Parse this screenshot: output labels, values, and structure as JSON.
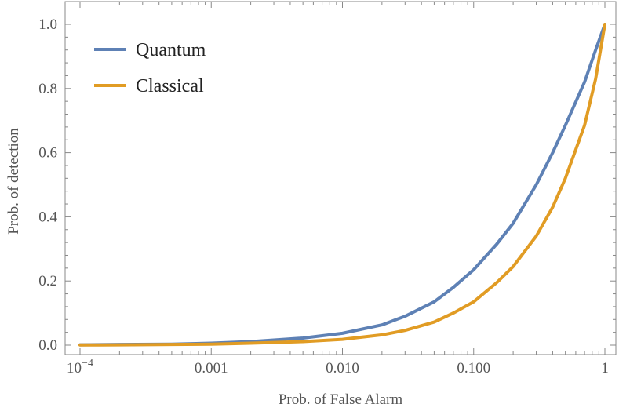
{
  "chart_data": {
    "type": "line",
    "title": "",
    "xlabel": "Prob. of False Alarm",
    "ylabel": "Prob. of detection",
    "xscale": "log",
    "xlim": [
      0.0001,
      1
    ],
    "ylim": [
      0.0,
      1.0
    ],
    "grid": false,
    "legend_position": "top-left",
    "x_ticks": [
      {
        "value": 0.0001,
        "base": "10",
        "exp": "−4"
      },
      {
        "value": 0.001,
        "label": "0.001"
      },
      {
        "value": 0.01,
        "label": "0.010"
      },
      {
        "value": 0.1,
        "label": "0.100"
      },
      {
        "value": 1,
        "label": "1"
      }
    ],
    "y_ticks": [
      {
        "value": 0.0,
        "label": "0.0"
      },
      {
        "value": 0.2,
        "label": "0.2"
      },
      {
        "value": 0.4,
        "label": "0.4"
      },
      {
        "value": 0.6,
        "label": "0.6"
      },
      {
        "value": 0.8,
        "label": "0.8"
      },
      {
        "value": 1.0,
        "label": "1.0"
      }
    ],
    "x": [
      0.0001,
      0.0002,
      0.0005,
      0.001,
      0.002,
      0.005,
      0.01,
      0.02,
      0.03,
      0.05,
      0.07,
      0.1,
      0.15,
      0.2,
      0.3,
      0.4,
      0.5,
      0.7,
      0.85,
      1.0
    ],
    "series": [
      {
        "name": "Quantum",
        "color": "#5e81b5",
        "values": [
          0.001,
          0.002,
          0.003,
          0.006,
          0.011,
          0.022,
          0.037,
          0.063,
          0.09,
          0.135,
          0.18,
          0.235,
          0.315,
          0.38,
          0.5,
          0.6,
          0.685,
          0.82,
          0.92,
          1.0
        ]
      },
      {
        "name": "Classical",
        "color": "#e19c24",
        "values": [
          0.0005,
          0.001,
          0.002,
          0.003,
          0.006,
          0.011,
          0.018,
          0.032,
          0.046,
          0.072,
          0.1,
          0.135,
          0.195,
          0.245,
          0.34,
          0.43,
          0.52,
          0.685,
          0.83,
          1.0
        ]
      }
    ]
  }
}
